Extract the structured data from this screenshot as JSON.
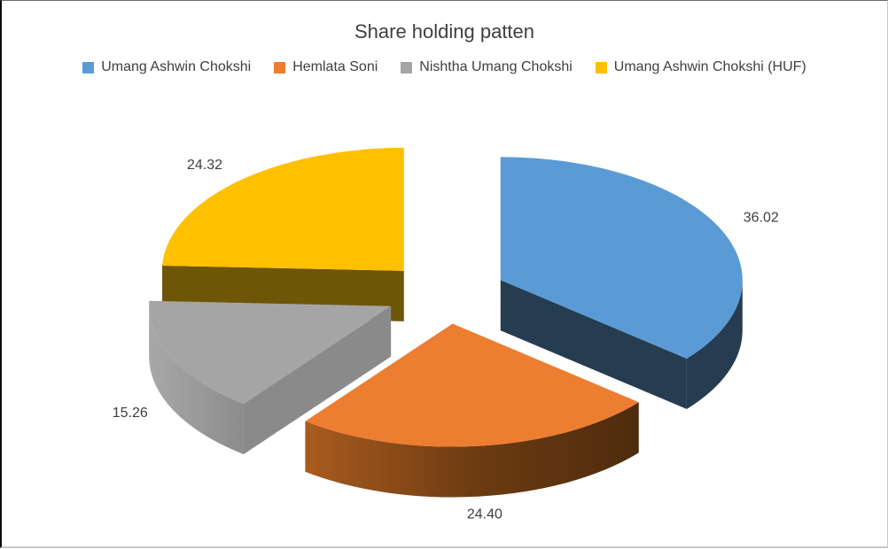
{
  "chart_data": {
    "type": "pie",
    "style": "3d-exploded",
    "title": "Share holding patten",
    "categories": [
      "Umang Ashwin Chokshi",
      "Hemlata Soni",
      "Nishtha Umang Chokshi",
      "Umang Ashwin Chokshi (HUF)"
    ],
    "values": [
      36.02,
      24.4,
      15.26,
      24.32
    ],
    "data_labels": [
      "36.02",
      "24.40",
      "15.26",
      "24.32"
    ],
    "colors": [
      "#5B9BD5",
      "#ED7D31",
      "#A5A5A5",
      "#FFC000"
    ],
    "side_colors": [
      "#263C51",
      "#7A4313",
      "#8A8A8A",
      "#6E5607"
    ],
    "label_color": "#3f3f3f",
    "title_color": "#3f3f3f",
    "legend_position": "top",
    "start_angle_deg": 0,
    "direction": "clockwise",
    "background": "#FFFFFF"
  }
}
